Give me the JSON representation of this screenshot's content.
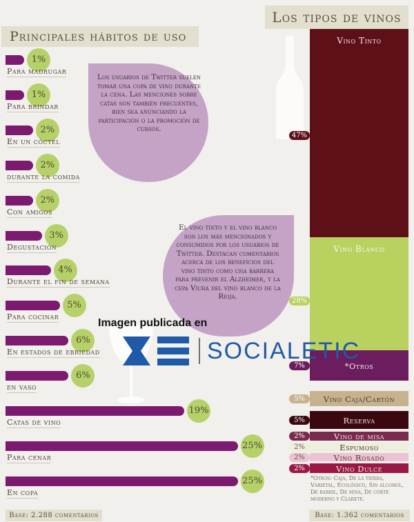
{
  "left_title": "Principales hábitos de uso",
  "right_title": "Los tipos de vinos",
  "habits": {
    "chart_data": {
      "type": "bar",
      "categories": [
        "Para madrugar",
        "Para brindar",
        "En un cóctel",
        "durante la comida",
        "Con amigos",
        "Degustación",
        "Durante el fin de semana",
        "Para cocinar",
        "En estados de ebriedad",
        "en vaso",
        "Catas de vino",
        "Para cenar",
        "En copa"
      ],
      "values": [
        1,
        1,
        2,
        2,
        2,
        3,
        4,
        5,
        6,
        6,
        19,
        25,
        25
      ],
      "value_labels": [
        "1%",
        "1%",
        "2%",
        "2%",
        "2%",
        "3%",
        "4%",
        "5%",
        "6%",
        "6%",
        "19%",
        "25%",
        "25%"
      ],
      "unit": "%"
    },
    "base": "Base: 2.288 comentarios"
  },
  "wine_types": {
    "chart_data": {
      "type": "bar",
      "stacked": true,
      "categories": [
        "Vino Tinto",
        "Vino Blanco",
        "*Otros",
        "Vino Caja/Cartón",
        "Reserva",
        "Vino de misa",
        "Espumoso",
        "Vino Rosado",
        "Vino Dulce"
      ],
      "values": [
        47,
        28,
        7,
        5,
        5,
        2,
        2,
        2,
        2
      ],
      "value_labels": [
        "47%",
        "28%",
        "7%",
        "5%",
        "5%",
        "2%",
        "2%",
        "2%",
        "2%"
      ],
      "unit": "%"
    },
    "colors": [
      "#5e1018",
      "#b9d15e",
      "#6b1d5e",
      "#c7b28f",
      "#3b0810",
      "#7a2a4e",
      "#eeeedd",
      "#ecc3d2",
      "#9a1846"
    ],
    "footnote": "*Otros: Caja, De la tierra, Varietal, Ecológico, Sin alcohol, De barril, De misa, De corte moderno y Clarete.",
    "base": "Base: 1.362 comentarios"
  },
  "notes": {
    "twitter_habits": "Los usuarios de Twitter suelen tomar una copa de vino durante la cena. Las menciones sobre catas son también frecuentes, bien sea anunciando la participación o la promoción de cursos.",
    "wine_mentions": "El vino tinto y el vino blanco son los más mencionados y consumidos por los usuarios de Twitter. Destacan comentarios acerca de los beneficios del vino tinto como una barrera para prevenir el Alzheimer, y la cepa Viura del vino blanco de la Rioja."
  },
  "watermark": {
    "caption": "Imagen publicada en",
    "brand": "SOCIALETIC"
  }
}
